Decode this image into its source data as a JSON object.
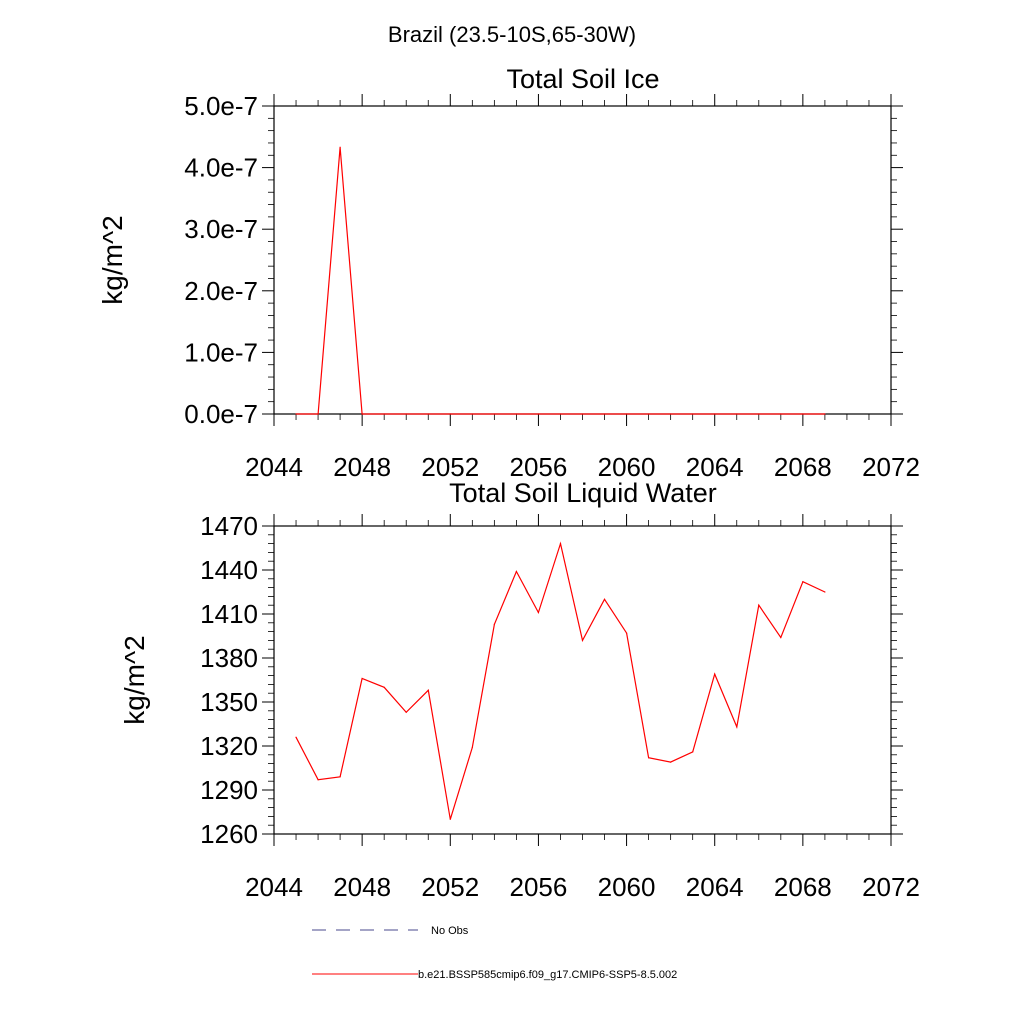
{
  "page_title": "Brazil (23.5-10S,65-30W)",
  "colors": {
    "model": "#ff0000",
    "obs": "#4a4a8c",
    "axis": "#000000"
  },
  "legend": [
    {
      "label": "No Obs",
      "style": "dashed",
      "color": "#4a4a8c"
    },
    {
      "label": "b.e21.BSSP585cmip6.f09_g17.CMIP6-SSP5-8.5.002",
      "style": "solid",
      "color": "#ff0000"
    }
  ],
  "chart_data": [
    {
      "type": "line",
      "title": "Total Soil Ice",
      "xlabel": "",
      "ylabel": "kg/m^2",
      "xlim": [
        2044,
        2072
      ],
      "ylim": [
        0,
        5e-07
      ],
      "xticks": [
        2044,
        2048,
        2052,
        2056,
        2060,
        2064,
        2068,
        2072
      ],
      "xtick_labels": [
        "2044",
        "2048",
        "2052",
        "2056",
        "2060",
        "2064",
        "2068",
        "2072"
      ],
      "yticks": [
        0,
        1e-07,
        2e-07,
        3e-07,
        4e-07,
        5e-07
      ],
      "ytick_labels": [
        "0.0e-7",
        "1.0e-7",
        "2.0e-7",
        "3.0e-7",
        "4.0e-7",
        "5.0e-7"
      ],
      "grid": false,
      "series": [
        {
          "name": "b.e21.BSSP585cmip6.f09_g17.CMIP6-SSP5-8.5.002",
          "x": [
            2045,
            2046,
            2047,
            2048,
            2049,
            2050,
            2051,
            2052,
            2053,
            2054,
            2055,
            2056,
            2057,
            2058,
            2059,
            2060,
            2061,
            2062,
            2063,
            2064,
            2065,
            2066,
            2067,
            2068,
            2069
          ],
          "values": [
            0,
            0,
            4.33e-07,
            0,
            0,
            0,
            0,
            0,
            0,
            0,
            0,
            0,
            0,
            0,
            0,
            0,
            0,
            0,
            0,
            0,
            0,
            0,
            0,
            0,
            0
          ]
        }
      ]
    },
    {
      "type": "line",
      "title": "Total Soil Liquid Water",
      "xlabel": "",
      "ylabel": "kg/m^2",
      "xlim": [
        2044,
        2072
      ],
      "ylim": [
        1260,
        1470
      ],
      "xticks": [
        2044,
        2048,
        2052,
        2056,
        2060,
        2064,
        2068,
        2072
      ],
      "xtick_labels": [
        "2044",
        "2048",
        "2052",
        "2056",
        "2060",
        "2064",
        "2068",
        "2072"
      ],
      "yticks": [
        1260,
        1290,
        1320,
        1350,
        1380,
        1410,
        1440,
        1470
      ],
      "ytick_labels": [
        "1260",
        "1290",
        "1320",
        "1350",
        "1380",
        "1410",
        "1440",
        "1470"
      ],
      "grid": false,
      "series": [
        {
          "name": "b.e21.BSSP585cmip6.f09_g17.CMIP6-SSP5-8.5.002",
          "x": [
            2045,
            2046,
            2047,
            2048,
            2049,
            2050,
            2051,
            2052,
            2053,
            2054,
            2055,
            2056,
            2057,
            2058,
            2059,
            2060,
            2061,
            2062,
            2063,
            2064,
            2065,
            2066,
            2067,
            2068,
            2069
          ],
          "values": [
            1326,
            1297,
            1299,
            1366,
            1360,
            1343,
            1358,
            1270,
            1319,
            1403,
            1439,
            1411,
            1458,
            1392,
            1420,
            1397,
            1312,
            1309,
            1316,
            1369,
            1333,
            1416,
            1394,
            1432,
            1425
          ]
        }
      ]
    }
  ]
}
